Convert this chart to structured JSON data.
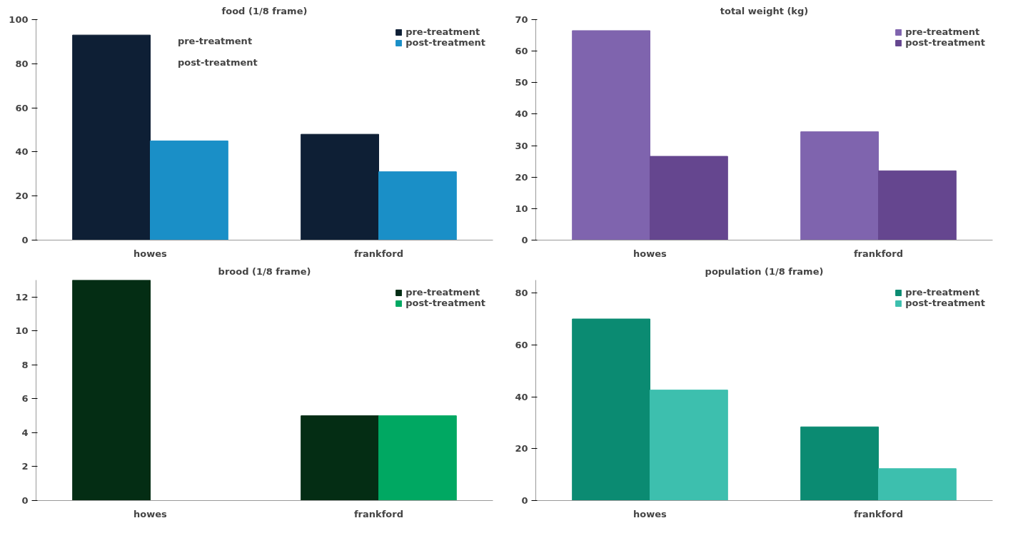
{
  "chart_data": [
    {
      "type": "bar",
      "title": "food (1/8 frame)",
      "categories": [
        "howes",
        "frankford"
      ],
      "series": [
        {
          "name": "pre-treatment",
          "color": "#0e1f35",
          "values": [
            93,
            48
          ]
        },
        {
          "name": "post-treatment",
          "color": "#1a8fc7",
          "values": [
            45,
            31
          ]
        }
      ],
      "ylim": [
        0,
        100
      ],
      "yticks": [
        0,
        20,
        40,
        60,
        80,
        100
      ],
      "grid": false,
      "legend": "top right",
      "annotations": [
        "pre-treatment",
        "post-treatment"
      ]
    },
    {
      "type": "bar",
      "title": "total weight (kg)",
      "categories": [
        "howes",
        "frankford"
      ],
      "series": [
        {
          "name": "pre-treatment",
          "color": "#7f64ae",
          "values": [
            66.5,
            34.4
          ]
        },
        {
          "name": "post-treatment",
          "color": "#65468f",
          "values": [
            26.6,
            22
          ]
        }
      ],
      "ylim": [
        0,
        70
      ],
      "yticks": [
        0,
        10,
        20,
        30,
        40,
        50,
        60,
        70
      ],
      "grid": false,
      "legend": "top right"
    },
    {
      "type": "bar",
      "title": "brood (1/8 frame)",
      "categories": [
        "howes",
        "frankford"
      ],
      "series": [
        {
          "name": "pre-treatment",
          "color": "#042d14",
          "values": [
            13,
            5
          ]
        },
        {
          "name": "post-treatment",
          "color": "#00a862",
          "values": [
            0,
            5
          ]
        }
      ],
      "ylim": [
        0,
        13
      ],
      "yticks": [
        0,
        2,
        4,
        6,
        8,
        10,
        12
      ],
      "grid": false,
      "legend": "top right"
    },
    {
      "type": "bar",
      "title": "population (1/8 frame)",
      "categories": [
        "howes",
        "frankford"
      ],
      "series": [
        {
          "name": "pre-treatment",
          "color": "#0b8b72",
          "values": [
            70,
            28.4
          ]
        },
        {
          "name": "post-treatment",
          "color": "#3dbfae",
          "values": [
            42.6,
            12.3
          ]
        }
      ],
      "ylim": [
        0,
        85
      ],
      "yticks": [
        0,
        20,
        40,
        60,
        80
      ],
      "grid": false,
      "legend": "top right"
    }
  ]
}
